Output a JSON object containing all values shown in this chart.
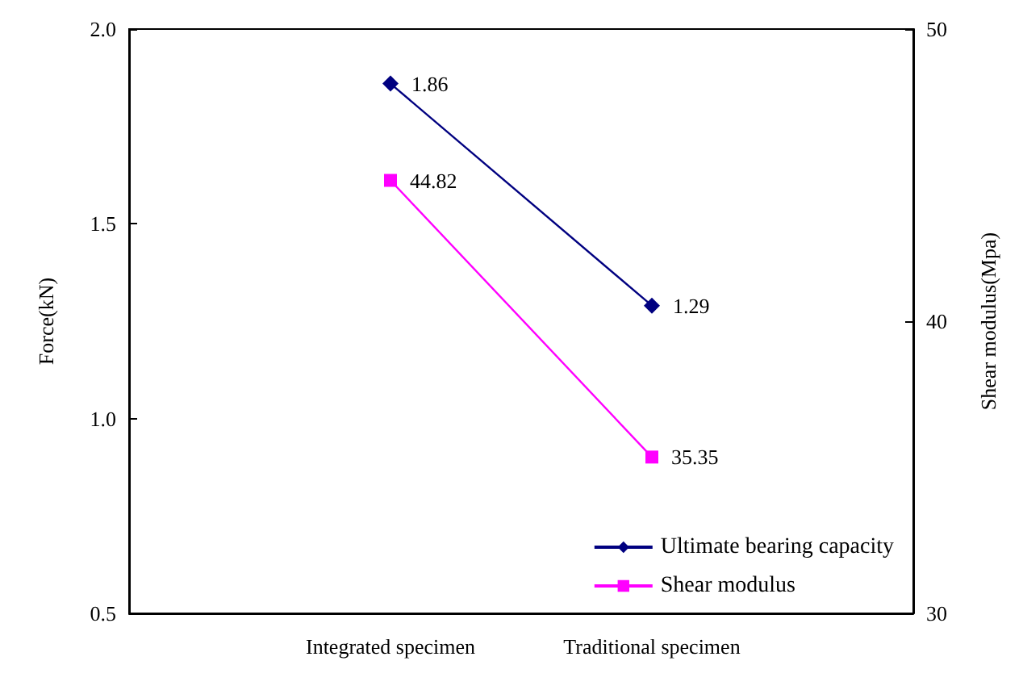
{
  "chart_data": {
    "type": "line",
    "categories": [
      "Integrated specimen",
      "Traditional specimen"
    ],
    "series": [
      {
        "name": "Ultimate bearing capacity",
        "color": "#000080",
        "values": [
          1.86,
          1.29
        ],
        "marker": "diamond"
      },
      {
        "name": "Shear modulus",
        "color": "#ff00ff",
        "values": [
          44.82,
          35.35
        ],
        "marker": "square",
        "axis": "y2"
      }
    ],
    "ylabel": "Force(kN)",
    "y2label": "Shear modulus(Mpa)",
    "ylim": [
      0.5,
      2.0
    ],
    "yticks": [
      0.5,
      {
        "value": 1.0,
        "label": "1.0"
      },
      1.5,
      {
        "value": 2.0,
        "label": "2.0"
      }
    ],
    "y2lim": [
      30,
      50
    ],
    "y2ticks": [
      30,
      40,
      50
    ],
    "data_labels": true,
    "legend": "bottom right",
    "grid": false,
    "line_style": "solid"
  }
}
